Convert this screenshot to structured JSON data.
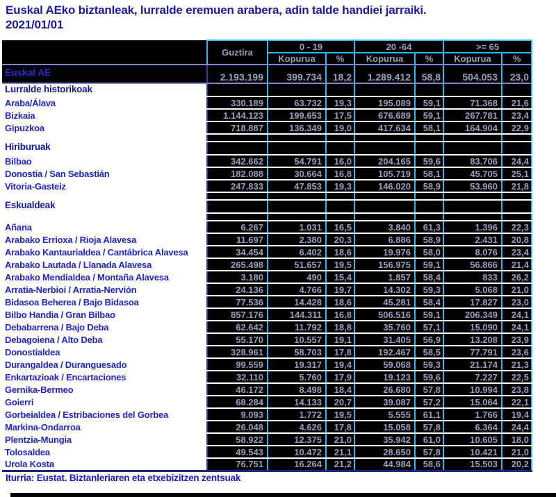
{
  "title": {
    "line1": "Euskal AEko biztanleak, lurralde eremuen arabera, adin talde handiei jarraiki.",
    "line2": "2021/01/01"
  },
  "footer": {
    "source": "Iturria: Eustat. Biztanleriaren eta etxebizitzen zentsuak"
  },
  "colors": {
    "title_text": "#1a1a9e",
    "section_label_text": "#15159b",
    "row_label_text": "#2125c4",
    "total_label_text": "#2230c8",
    "number_text": "#9b9dbe",
    "cell_background": "#000000",
    "column_border_cyan": "#2eb6ef",
    "header_border_periwinkle": "#7e88d0",
    "label_divider_navy": "#323c9e",
    "row_separator_white": "#ffffff",
    "table_bottom_navy": "#1d2a78",
    "footer_text": "#1717cf"
  },
  "chart_data": {
    "type": "table",
    "title": "Euskal AEko biztanleak, lurralde eremuen arabera, adin talde handiei jarraiki. 2021/01/01",
    "header": {
      "total_label": "Guztira",
      "age_groups": [
        "0  - 19",
        "20 -64",
        ">= 65"
      ],
      "count_label": "Kopurua",
      "percent_label": "%"
    },
    "columns": [
      "",
      "Guztira",
      "0-19 Kopurua",
      "0-19 %",
      "20-64 Kopurua",
      "20-64 %",
      ">=65 Kopurua",
      ">=65 %"
    ],
    "rows": [
      {
        "type": "total",
        "label": "Euskal AE",
        "values": [
          "2.193.199",
          "399.734",
          "18,2",
          "1.289.412",
          "58,8",
          "504.053",
          "23,0"
        ]
      },
      {
        "type": "section",
        "label": "Lurralde historikoak"
      },
      {
        "type": "data",
        "label": "Araba/Álava",
        "values": [
          "330.189",
          "63.732",
          "19,3",
          "195.089",
          "59,1",
          "71.368",
          "21,6"
        ]
      },
      {
        "type": "data",
        "label": "Bizkaia",
        "values": [
          "1.144.123",
          "199.653",
          "17,5",
          "676.689",
          "59,1",
          "267.781",
          "23,4"
        ]
      },
      {
        "type": "data",
        "label": "Gipuzkoa",
        "values": [
          "718.887",
          "136.349",
          "19,0",
          "417.634",
          "58,1",
          "164.904",
          "22,9"
        ]
      },
      {
        "type": "spacer"
      },
      {
        "type": "section",
        "label": "Hiriburuak"
      },
      {
        "type": "data",
        "label": "Bilbao",
        "values": [
          "342.662",
          "54.791",
          "16,0",
          "204.165",
          "59,6",
          "83.706",
          "24,4"
        ]
      },
      {
        "type": "data",
        "label": "Donostia / San Sebastián",
        "values": [
          "182.088",
          "30.664",
          "16,8",
          "105.719",
          "58,1",
          "45.705",
          "25,1"
        ]
      },
      {
        "type": "data",
        "label": "Vitoria-Gasteiz",
        "values": [
          "247.833",
          "47.853",
          "19,3",
          "146.020",
          "58,9",
          "53.960",
          "21,8"
        ]
      },
      {
        "type": "spacer"
      },
      {
        "type": "section",
        "label": "Eskualdeak"
      },
      {
        "type": "spacer"
      },
      {
        "type": "data",
        "label": "Añana",
        "values": [
          "6.267",
          "1.031",
          "16,5",
          "3.840",
          "61,3",
          "1.396",
          "22,3"
        ]
      },
      {
        "type": "data",
        "label": "Arabako Errioxa / Rioja Alavesa",
        "values": [
          "11.697",
          "2.380",
          "20,3",
          "6.886",
          "58,9",
          "2.431",
          "20,8"
        ]
      },
      {
        "type": "data",
        "label": "Arabako Kantaurialdea / Cantábrica Alavesa",
        "values": [
          "34.454",
          "6.402",
          "18,6",
          "19.976",
          "58,0",
          "8.076",
          "23,4"
        ]
      },
      {
        "type": "data",
        "label": "Arabako Lautada / Llanada Alavesa",
        "values": [
          "265.498",
          "51.657",
          "19,5",
          "156.975",
          "59,1",
          "56.866",
          "21,4"
        ]
      },
      {
        "type": "data",
        "label": "Arabako Mendialdea / Montaña Alavesa",
        "values": [
          "3.180",
          "490",
          "15,4",
          "1.857",
          "58,4",
          "833",
          "26,2"
        ]
      },
      {
        "type": "data",
        "label": "Arratia-Nerbioi / Arratia-Nervión",
        "values": [
          "24.136",
          "4.766",
          "19,7",
          "14.302",
          "59,3",
          "5.068",
          "21,0"
        ]
      },
      {
        "type": "data",
        "label": "Bidasoa Beherea / Bajo Bidasoa",
        "values": [
          "77.536",
          "14.428",
          "18,6",
          "45.281",
          "58,4",
          "17.827",
          "23,0"
        ]
      },
      {
        "type": "data",
        "label": "Bilbo Handia / Gran Bilbao",
        "values": [
          "857.176",
          "144.311",
          "16,8",
          "506.516",
          "59,1",
          "206.349",
          "24,1"
        ]
      },
      {
        "type": "data",
        "label": "Debabarrena / Bajo Deba",
        "values": [
          "62.642",
          "11.792",
          "18,8",
          "35.760",
          "57,1",
          "15.090",
          "24,1"
        ]
      },
      {
        "type": "data",
        "label": "Debagoiena / Alto Deba",
        "values": [
          "55.170",
          "10.557",
          "19,1",
          "31.405",
          "56,9",
          "13.208",
          "23,9"
        ]
      },
      {
        "type": "data",
        "label": "Donostialdea",
        "values": [
          "328.961",
          "58.703",
          "17,8",
          "192.467",
          "58,5",
          "77.791",
          "23,6"
        ]
      },
      {
        "type": "data",
        "label": "Durangaldea / Duranguesado",
        "values": [
          "99.559",
          "19.317",
          "19,4",
          "59.068",
          "59,3",
          "21.174",
          "21,3"
        ]
      },
      {
        "type": "data",
        "label": "Enkartazioak / Encartaciones",
        "values": [
          "32.110",
          "5.760",
          "17,9",
          "19.123",
          "59,6",
          "7.227",
          "22,5"
        ]
      },
      {
        "type": "data",
        "label": "Gernika-Bermeo",
        "values": [
          "46.172",
          "8.498",
          "18,4",
          "26.680",
          "57,8",
          "10.994",
          "23,8"
        ]
      },
      {
        "type": "data",
        "label": "Goierri",
        "values": [
          "68.284",
          "14.133",
          "20,7",
          "39.087",
          "57,2",
          "15.064",
          "22,1"
        ]
      },
      {
        "type": "data",
        "label": "Gorbeialdea / Estribaciones del Gorbea",
        "values": [
          "9.093",
          "1.772",
          "19,5",
          "5.555",
          "61,1",
          "1.766",
          "19,4"
        ]
      },
      {
        "type": "data",
        "label": "Markina-Ondarroa",
        "values": [
          "26.048",
          "4.626",
          "17,8",
          "15.058",
          "57,8",
          "6.364",
          "24,4"
        ]
      },
      {
        "type": "data",
        "label": "Plentzia-Mungia",
        "values": [
          "58.922",
          "12.375",
          "21,0",
          "35.942",
          "61,0",
          "10.605",
          "18,0"
        ]
      },
      {
        "type": "data",
        "label": "Tolosaldea",
        "values": [
          "49.543",
          "10.472",
          "21,1",
          "28.650",
          "57,8",
          "10.421",
          "21,0"
        ]
      },
      {
        "type": "data",
        "label": "Urola Kosta",
        "values": [
          "76.751",
          "16.264",
          "21,2",
          "44.984",
          "58,6",
          "15.503",
          "20,2"
        ]
      }
    ]
  }
}
